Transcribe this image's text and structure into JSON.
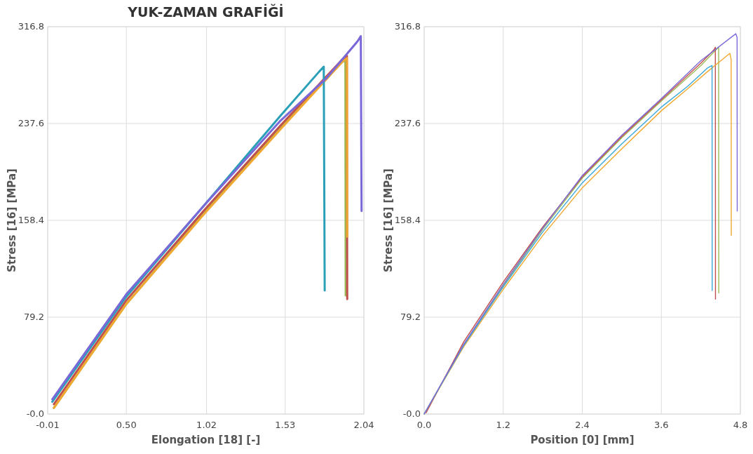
{
  "chart_data": [
    {
      "type": "line",
      "title": "YUK-ZAMAN GRAFİĞİ",
      "xlabel": "Elongation [18] [-]",
      "ylabel": "Stress [16] [MPa]",
      "xlim": [
        -0.01,
        2.04
      ],
      "xticks": [
        -0.01,
        {
          "value": 0.5,
          "label": "0.50"
        },
        1.02,
        1.53,
        2.04
      ],
      "ylim": [
        0,
        316.8
      ],
      "yticks": [
        {
          "value": 0,
          "label": "-0.0"
        },
        79.2,
        158.4,
        237.6,
        316.8
      ],
      "grid": true,
      "line_style": "solid",
      "series": [
        {
          "color": "#9bbb59",
          "x": [
            0.03,
            0.5,
            1.0,
            1.5,
            1.9,
            1.92,
            1.922
          ],
          "values": [
            5,
            90,
            164,
            235,
            288,
            289,
            97
          ]
        },
        {
          "color": "#c0504d",
          "x": [
            0.03,
            0.5,
            1.0,
            1.5,
            1.9,
            1.93,
            1.932
          ],
          "values": [
            8,
            93,
            166,
            236,
            290,
            293,
            94
          ]
        },
        {
          "color": "#f0a830",
          "x": [
            0.03,
            0.5,
            1.0,
            1.5,
            1.9,
            1.93,
            1.932
          ],
          "values": [
            5,
            90,
            163,
            233,
            288,
            291,
            145
          ]
        },
        {
          "color": "#2aa0b8",
          "x": [
            0.02,
            0.5,
            1.0,
            1.5,
            1.75,
            1.78,
            1.786
          ],
          "values": [
            10,
            96,
            170,
            244,
            280,
            284,
            101
          ]
        },
        {
          "color": "#7b68d8",
          "x": [
            0.02,
            0.5,
            1.0,
            1.5,
            1.8,
            2.0,
            2.02,
            2.025
          ],
          "values": [
            12,
            98,
            170,
            240,
            275,
            305,
            309,
            166
          ]
        }
      ]
    },
    {
      "type": "line",
      "xlabel": "Position [0] [mm]",
      "ylabel": "Stress [16] [MPa]",
      "xlim": [
        0,
        4.8
      ],
      "xticks": [
        {
          "value": 0,
          "label": "0.0"
        },
        1.2,
        2.4,
        3.6,
        4.8
      ],
      "ylim": [
        0,
        316.8
      ],
      "yticks": [
        {
          "value": 0,
          "label": "-0.0"
        },
        79.2,
        158.4,
        237.6,
        316.8
      ],
      "grid": true,
      "line_style": "solid",
      "series": [
        {
          "color": "#9bbb59",
          "x": [
            0,
            0.6,
            1.2,
            1.8,
            2.4,
            3.0,
            3.6,
            4.2,
            4.45,
            4.47,
            4.472
          ],
          "values": [
            0,
            56,
            105,
            151,
            193,
            226,
            256,
            285,
            299,
            300,
            99
          ]
        },
        {
          "color": "#c0504d",
          "x": [
            0.03,
            0.6,
            1.2,
            1.8,
            2.4,
            3.0,
            3.6,
            4.2,
            4.4,
            4.42,
            4.422
          ],
          "values": [
            1,
            59,
            108,
            153,
            194,
            227,
            257,
            287,
            298,
            300,
            94
          ]
        },
        {
          "color": "#f0a830",
          "x": [
            0,
            0.6,
            1.2,
            1.8,
            2.4,
            3.0,
            3.6,
            4.0,
            4.3,
            4.64,
            4.66,
            4.662
          ],
          "values": [
            0,
            55,
            102,
            146,
            185,
            217,
            248,
            266,
            280,
            295,
            290,
            146
          ]
        },
        {
          "color": "#3aa8d8",
          "x": [
            0,
            0.6,
            1.2,
            1.8,
            2.4,
            3.0,
            3.6,
            4.0,
            4.3,
            4.37,
            4.372
          ],
          "values": [
            0,
            56,
            104,
            149,
            189,
            221,
            251,
            268,
            283,
            285,
            101
          ]
        },
        {
          "color": "#7b68d8",
          "x": [
            0,
            0.6,
            1.2,
            1.8,
            2.4,
            3.0,
            3.6,
            4.2,
            4.73,
            4.75,
            4.752
          ],
          "values": [
            0,
            57,
            106,
            152,
            195,
            228,
            258,
            289,
            311,
            308,
            166
          ]
        }
      ]
    }
  ]
}
